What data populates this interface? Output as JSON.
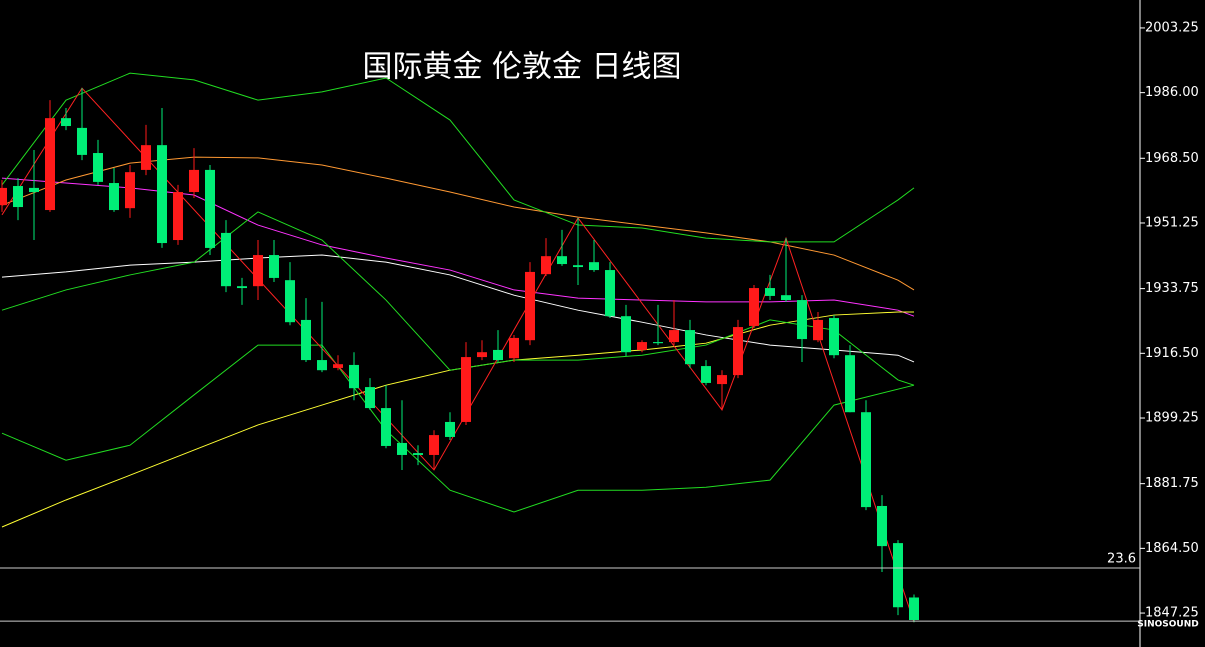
{
  "chart_data": {
    "type": "candlestick",
    "title": "国际黄金 伦敦金 日线图",
    "watermark": "SINOSOUND",
    "up_color": "#ff1a1a",
    "down_color": "#00ee77",
    "ylim": [
      1838.2,
      2010.7
    ],
    "yticks": [
      2003.25,
      {
        "value": 1986,
        "label": "1986.00"
      },
      {
        "value": 1968.5,
        "label": "1968.50"
      },
      1951.25,
      1933.75,
      {
        "value": 1916.5,
        "label": "1916.50"
      },
      1899.25,
      1881.75,
      {
        "value": 1864.5,
        "label": "1864.50"
      },
      1847.25
    ],
    "levels": [
      {
        "value": 1859.25,
        "label": "23.6"
      },
      {
        "value": 1845.1
      }
    ],
    "open": [
      1956.0,
      1961.1,
      1960.6,
      1954.7,
      1979.2,
      1976.6,
      1969.9,
      1961.9,
      1955.2,
      1965.4,
      1972.0,
      1946.7,
      1959.5,
      1965.4,
      1948.6,
      1934.4,
      1934.4,
      1942.7,
      1936.0,
      1925.4,
      1914.7,
      1912.6,
      1913.4,
      1907.5,
      1901.9,
      1892.6,
      1889.9,
      1889.4,
      1898.2,
      1898.2,
      1915.5,
      1917.4,
      1915.2,
      1920.0,
      1937.6,
      1942.4,
      1940.0,
      1940.8,
      1938.7,
      1926.4,
      1917.4,
      1919.5,
      1919.5,
      1922.7,
      1913.1,
      1908.3,
      1910.7,
      1923.8,
      1933.9,
      1932.0,
      1930.7,
      1920.0,
      1925.9,
      1916.0,
      1900.8,
      1875.8,
      1865.9,
      1851.4
    ],
    "high": [
      1962.7,
      1963.2,
      1970.7,
      1984.0,
      1981.9,
      1987.2,
      1973.4,
      1965.9,
      1966.7,
      1977.4,
      1981.9,
      1961.4,
      1971.2,
      1966.7,
      1952.0,
      1936.6,
      1946.7,
      1946.7,
      1940.8,
      1931.2,
      1930.2,
      1916.0,
      1916.8,
      1909.9,
      1908.0,
      1904.0,
      1892.0,
      1896.0,
      1900.8,
      1919.5,
      1920.0,
      1922.7,
      1921.4,
      1940.8,
      1947.2,
      1949.4,
      1952.6,
      1946.7,
      1940.8,
      1929.4,
      1920.0,
      1929.4,
      1930.7,
      1925.4,
      1914.7,
      1912.0,
      1925.4,
      1934.7,
      1937.4,
      1947.2,
      1932.0,
      1927.5,
      1926.7,
      1918.7,
      1904.0,
      1878.7,
      1866.7,
      1852.2
    ],
    "low": [
      1954.2,
      1952.0,
      1946.7,
      1954.2,
      1976.0,
      1968.0,
      1961.4,
      1954.2,
      1952.6,
      1964.0,
      1944.6,
      1945.4,
      1957.9,
      1942.7,
      1932.8,
      1929.4,
      1930.7,
      1935.5,
      1924.0,
      1914.2,
      1911.5,
      1912.0,
      1904.0,
      1901.4,
      1891.2,
      1885.4,
      1886.7,
      1885.4,
      1893.4,
      1897.4,
      1914.7,
      1914.2,
      1914.2,
      1918.7,
      1937.1,
      1939.8,
      1934.7,
      1938.2,
      1925.9,
      1915.8,
      1916.8,
      1918.7,
      1918.7,
      1912.6,
      1908.0,
      1901.4,
      1909.9,
      1923.2,
      1930.7,
      1930.2,
      1914.2,
      1919.5,
      1915.2,
      1900.8,
      1874.7,
      1858.2,
      1846.7,
      1844.8
    ],
    "close": [
      1960.6,
      1955.5,
      1959.5,
      1979.2,
      1977.1,
      1969.4,
      1962.2,
      1954.7,
      1964.8,
      1972.0,
      1945.9,
      1959.5,
      1965.4,
      1944.6,
      1934.4,
      1933.9,
      1942.7,
      1936.6,
      1924.8,
      1914.7,
      1912.0,
      1913.6,
      1907.2,
      1901.9,
      1891.8,
      1889.4,
      1889.4,
      1894.7,
      1894.2,
      1915.5,
      1916.8,
      1914.7,
      1920.6,
      1938.2,
      1942.4,
      1940.3,
      1939.5,
      1938.7,
      1926.4,
      1916.8,
      1919.5,
      1919.2,
      1922.7,
      1913.6,
      1908.6,
      1910.7,
      1923.5,
      1933.9,
      1931.8,
      1930.7,
      1920.3,
      1925.4,
      1916.0,
      1900.8,
      1875.5,
      1865.1,
      1848.8,
      1845.4
    ],
    "overlays": [
      {
        "color": "#ffffff",
        "x": [
          0,
          4,
          8,
          12,
          16,
          20,
          24,
          28,
          32,
          36,
          40,
          44,
          48,
          52,
          56,
          57
        ],
        "values": [
          1936.8,
          1938.2,
          1940.0,
          1940.8,
          1941.9,
          1942.7,
          1940.8,
          1937.4,
          1932.0,
          1928.0,
          1924.8,
          1921.4,
          1918.7,
          1917.4,
          1916.0,
          1914.2
        ]
      },
      {
        "color": "#ff33ff",
        "x": [
          0,
          4,
          8,
          12,
          16,
          20,
          24,
          28,
          32,
          36,
          40,
          44,
          48,
          52,
          56,
          57
        ],
        "values": [
          1963.2,
          1961.9,
          1960.6,
          1958.7,
          1950.7,
          1945.4,
          1941.9,
          1938.7,
          1933.4,
          1931.2,
          1930.7,
          1930.2,
          1930.2,
          1930.7,
          1928.0,
          1926.4
        ]
      },
      {
        "color": "#ff9933",
        "x": [
          0,
          4,
          8,
          12,
          16,
          20,
          24,
          28,
          32,
          36,
          40,
          44,
          48,
          52,
          56,
          57
        ],
        "values": [
          1956.0,
          1962.7,
          1967.2,
          1968.8,
          1968.6,
          1966.7,
          1963.2,
          1959.5,
          1955.5,
          1952.8,
          1950.7,
          1948.6,
          1946.2,
          1942.7,
          1936.0,
          1933.4
        ]
      },
      {
        "color": "#ffff33",
        "x": [
          0,
          4,
          8,
          12,
          16,
          20,
          24,
          28,
          32,
          36,
          40,
          44,
          48,
          52,
          56,
          57
        ],
        "values": [
          1870.2,
          1877.4,
          1884.0,
          1890.7,
          1897.4,
          1902.7,
          1908.0,
          1912.0,
          1914.7,
          1916.0,
          1917.4,
          1919.2,
          1924.0,
          1926.7,
          1927.5,
          1927.5
        ]
      },
      {
        "color": "#22dd22",
        "x": [
          0,
          4,
          8,
          12,
          16,
          20,
          24,
          28,
          32,
          36,
          40,
          44,
          48,
          52,
          56,
          57
        ],
        "values": [
          1961.4,
          1984.0,
          1991.2,
          1989.4,
          1984.0,
          1986.2,
          1989.9,
          1978.7,
          1957.4,
          1950.7,
          1949.9,
          1947.2,
          1946.2,
          1946.2,
          1957.4,
          1960.6
        ]
      },
      {
        "color": "#22dd22",
        "x": [
          0,
          4,
          8,
          12,
          16,
          20,
          24,
          28,
          32,
          36,
          40,
          44,
          48,
          52,
          57
        ],
        "values": [
          1895.2,
          1888.0,
          1892.0,
          1905.4,
          1918.7,
          1918.7,
          1896.0,
          1880.0,
          1874.2,
          1880.0,
          1880.0,
          1880.8,
          1882.7,
          1902.7,
          1908.0
        ]
      },
      {
        "color": "#22dd22",
        "x": [
          0,
          4,
          8,
          12,
          16,
          20,
          24,
          28,
          32,
          36,
          40,
          44,
          48,
          52,
          56,
          57
        ],
        "values": [
          1928.0,
          1933.4,
          1937.4,
          1940.8,
          1954.2,
          1946.7,
          1930.7,
          1912.0,
          1914.7,
          1914.7,
          1916.0,
          1918.7,
          1925.4,
          1922.7,
          1909.4,
          1908.0
        ]
      },
      {
        "color": "#ff2222",
        "x": [
          0,
          5,
          27,
          36,
          45,
          49,
          57
        ],
        "values": [
          1953.4,
          1987.2,
          1885.4,
          1952.6,
          1901.4,
          1947.2,
          1844.8
        ]
      }
    ]
  }
}
